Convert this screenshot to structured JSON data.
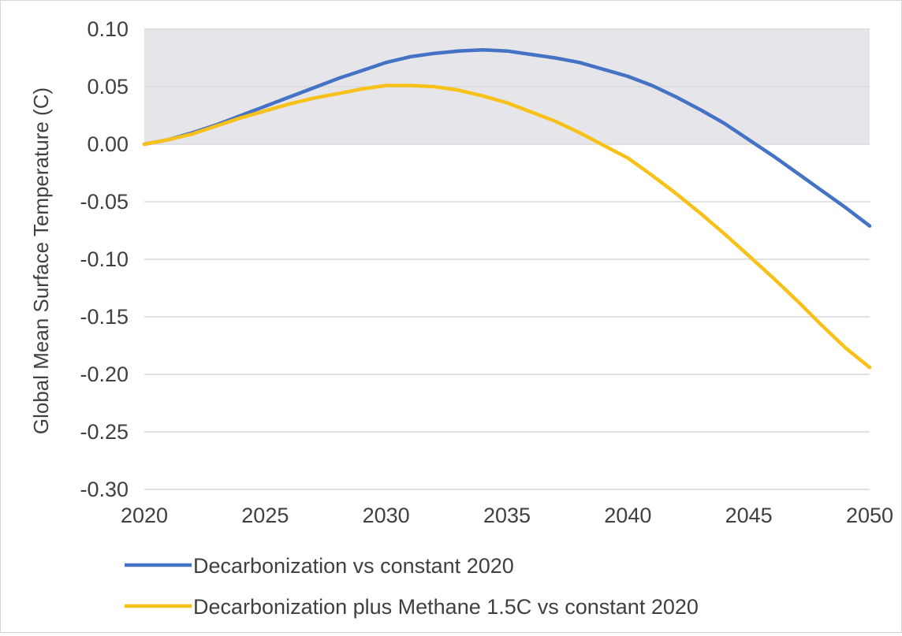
{
  "chart_data": {
    "type": "line",
    "title": "",
    "xlabel": "",
    "ylabel": "Global Mean Surface Temperature (C)",
    "xlim": [
      2020,
      2050
    ],
    "ylim": [
      -0.3,
      0.1
    ],
    "x_ticks": [
      "2020",
      "2025",
      "2030",
      "2035",
      "2040",
      "2045",
      "2050"
    ],
    "y_ticks": [
      "0.10",
      "0.05",
      "0.00",
      "-0.05",
      "-0.10",
      "-0.15",
      "-0.20",
      "-0.25",
      "-0.30"
    ],
    "grid": "horizontal",
    "shaded_band": {
      "y_from": 0.0,
      "y_to": 0.1,
      "color": "#e6e6ea"
    },
    "legend_position": "bottom",
    "series": [
      {
        "name": "Decarbonization vs constant 2020",
        "color": "#4472c4",
        "x": [
          2020,
          2021,
          2022,
          2023,
          2024,
          2025,
          2026,
          2027,
          2028,
          2029,
          2030,
          2031,
          2032,
          2033,
          2034,
          2035,
          2036,
          2037,
          2038,
          2039,
          2040,
          2041,
          2042,
          2043,
          2044,
          2045,
          2046,
          2047,
          2048,
          2049,
          2050
        ],
        "values": [
          0.0,
          0.004,
          0.01,
          0.017,
          0.025,
          0.033,
          0.041,
          0.049,
          0.057,
          0.064,
          0.071,
          0.076,
          0.079,
          0.081,
          0.082,
          0.081,
          0.078,
          0.075,
          0.071,
          0.065,
          0.059,
          0.051,
          0.041,
          0.03,
          0.018,
          0.004,
          -0.01,
          -0.025,
          -0.04,
          -0.055,
          -0.071
        ]
      },
      {
        "name": "Decarbonization plus Methane 1.5C vs constant 2020",
        "color": "#f7c11a",
        "x": [
          2020,
          2021,
          2022,
          2023,
          2024,
          2025,
          2026,
          2027,
          2028,
          2029,
          2030,
          2031,
          2032,
          2033,
          2034,
          2035,
          2036,
          2037,
          2038,
          2039,
          2040,
          2041,
          2042,
          2043,
          2044,
          2045,
          2046,
          2047,
          2048,
          2049,
          2050
        ],
        "values": [
          0.0,
          0.004,
          0.009,
          0.016,
          0.023,
          0.029,
          0.035,
          0.04,
          0.044,
          0.048,
          0.051,
          0.051,
          0.05,
          0.047,
          0.042,
          0.036,
          0.028,
          0.02,
          0.01,
          -0.001,
          -0.012,
          -0.027,
          -0.043,
          -0.06,
          -0.078,
          -0.097,
          -0.116,
          -0.136,
          -0.157,
          -0.177,
          -0.194
        ]
      }
    ]
  }
}
